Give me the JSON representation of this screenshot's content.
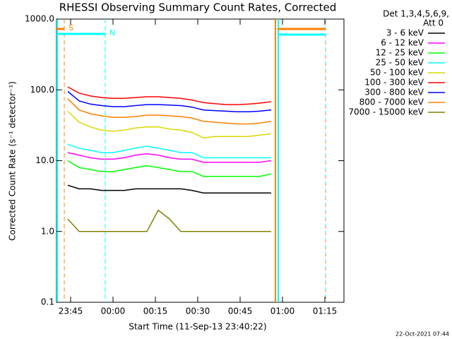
{
  "chart_data": {
    "type": "line",
    "title": "RHESSI Observing Summary Count Rates, Corrected",
    "x_label": "Start Time (11-Sep-13 23:40:22)",
    "y_label": "Corrected Count Rate (s⁻¹ detector⁻¹)",
    "legend_header": [
      "Det 1,3,4,5,6,9,",
      "Att 0"
    ],
    "annotations": [
      "S",
      "N"
    ],
    "footer": "22-Oct-2021 07:44",
    "log_y": true,
    "xlim": [
      0,
      101.75
    ],
    "ylim": [
      0.1,
      1000
    ],
    "xticks": [
      {
        "value": 5,
        "label": "23:45"
      },
      {
        "value": 20,
        "label": "00:00"
      },
      {
        "value": 35,
        "label": "00:15"
      },
      {
        "value": 50,
        "label": "00:30"
      },
      {
        "value": 65,
        "label": "00:45"
      },
      {
        "value": 80,
        "label": "01:00"
      },
      {
        "value": 95,
        "label": "01:15"
      }
    ],
    "yticks": [
      0.1,
      {
        "value": 1,
        "label": "1.0"
      },
      {
        "value": 10,
        "label": "10.0"
      },
      {
        "value": 100,
        "label": "100.0"
      },
      {
        "value": 1000,
        "label": "1000.0"
      }
    ],
    "x": [
      4,
      8,
      12,
      16,
      20,
      24,
      28,
      32,
      36,
      40,
      44,
      48,
      52,
      56,
      60,
      64,
      68,
      72,
      76
    ],
    "series": [
      {
        "name": "3 - 6 keV",
        "color": "#000000",
        "values": [
          4.5,
          4,
          4,
          3.8,
          3.8,
          3.8,
          4,
          4,
          4,
          4,
          4,
          3.8,
          3.5,
          3.5,
          3.5,
          3.5,
          3.5,
          3.5,
          3.5
        ]
      },
      {
        "name": "6 - 12 keV",
        "color": "#ff00ff",
        "values": [
          13,
          12,
          11,
          10.5,
          10.5,
          11,
          12,
          12.5,
          12,
          11,
          10.5,
          10.5,
          9.5,
          9.5,
          9.5,
          9.5,
          9.5,
          9.5,
          10
        ]
      },
      {
        "name": "12 - 25 keV",
        "color": "#00ff00",
        "values": [
          10,
          8,
          7.5,
          7,
          7,
          7.5,
          8,
          8.5,
          8,
          7.5,
          7,
          7,
          6,
          6,
          6,
          6,
          6,
          6,
          6.5
        ]
      },
      {
        "name": "25 - 50 keV",
        "color": "#00ffff",
        "values": [
          17,
          15,
          14,
          13,
          13,
          14,
          15,
          16,
          15,
          14,
          13,
          13,
          11,
          11,
          11,
          11,
          11,
          11,
          11
        ]
      },
      {
        "name": "50 - 100 keV",
        "color": "#d8d800",
        "values": [
          50,
          35,
          30,
          27,
          26,
          27,
          29,
          30,
          30,
          28,
          27,
          25,
          21,
          22,
          22,
          22,
          22,
          23,
          24
        ]
      },
      {
        "name": "100 - 300 keV",
        "color": "#ff0000",
        "values": [
          110,
          90,
          82,
          78,
          76,
          76,
          78,
          80,
          80,
          78,
          76,
          72,
          66,
          64,
          62,
          62,
          63,
          65,
          68
        ]
      },
      {
        "name": "300 - 800 keV",
        "color": "#0000ff",
        "values": [
          95,
          70,
          63,
          60,
          58,
          58,
          60,
          62,
          62,
          61,
          60,
          57,
          52,
          51,
          50,
          49,
          49,
          50,
          52
        ]
      },
      {
        "name": "800 - 7000 keV",
        "color": "#ff8000",
        "values": [
          75,
          52,
          46,
          43,
          41,
          41,
          42,
          44,
          44,
          43,
          42,
          40,
          36,
          35,
          34,
          33,
          33,
          34,
          36
        ]
      },
      {
        "name": "7000 - 15000 keV",
        "color": "#808000",
        "values": [
          1.5,
          1,
          1,
          1,
          1,
          1,
          1,
          1,
          2,
          1.5,
          1,
          1,
          1,
          1,
          1,
          1,
          1,
          1,
          1
        ]
      }
    ]
  }
}
